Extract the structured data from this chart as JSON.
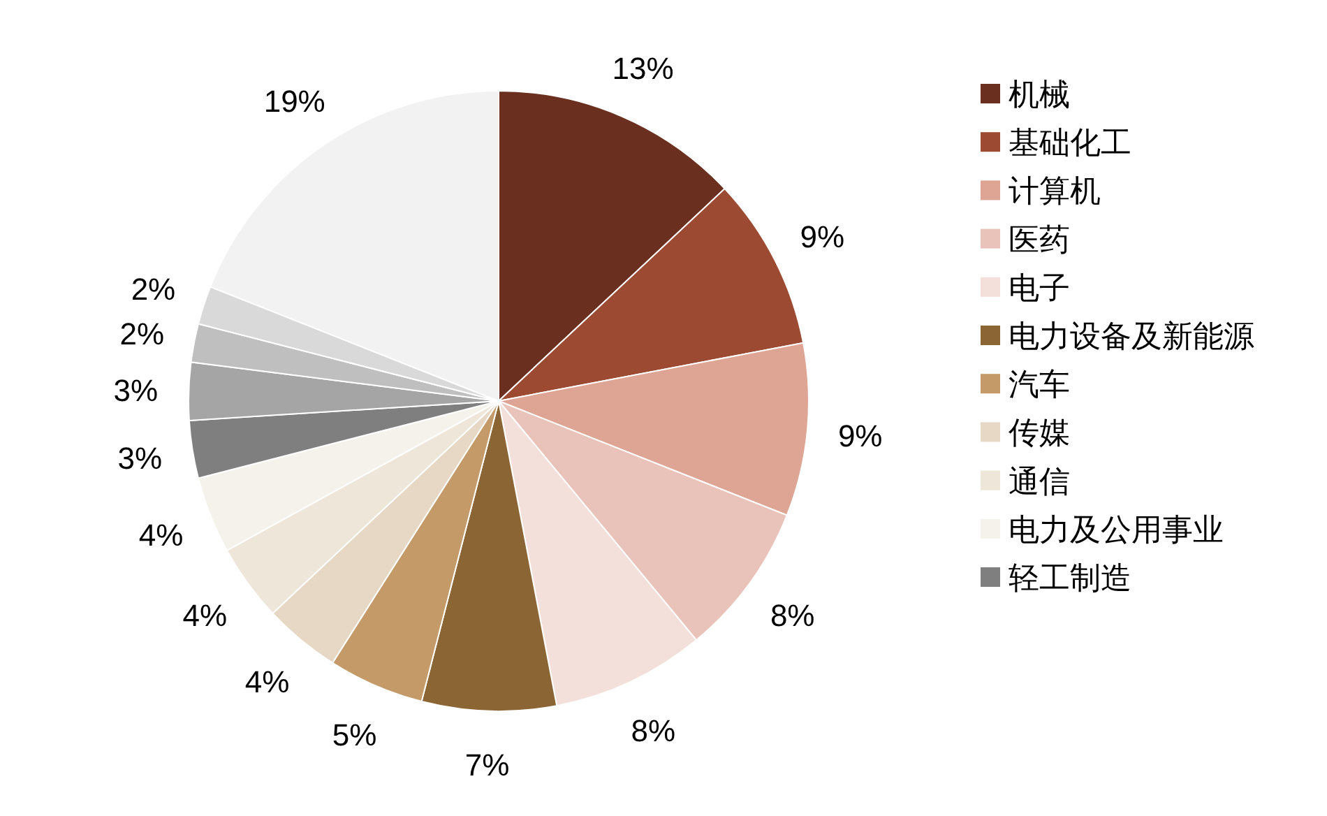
{
  "chart_data": {
    "type": "pie",
    "categories": [
      "机械",
      "基础化工",
      "计算机",
      "医药",
      "电子",
      "电力设备及新能源",
      "汽车",
      "传媒",
      "通信",
      "电力及公用事业",
      "轻工制造",
      null,
      null,
      null,
      null
    ],
    "values": [
      13,
      9,
      9,
      8,
      8,
      7,
      5,
      4,
      4,
      4,
      3,
      3,
      2,
      2,
      19
    ],
    "colors": [
      "#6b2f20",
      "#9c4a32",
      "#dea595",
      "#e9c3b9",
      "#f4e0db",
      "#8c6535",
      "#c49b68",
      "#e6d8c4",
      "#efe6da",
      "#f5f2ec",
      "#7f7f7f",
      "#a5a5a5",
      "#bfbfbf",
      "#d9d9d9",
      "#f2f2f2"
    ],
    "value_labels": [
      "13%",
      "9%",
      "9%",
      "8%",
      "8%",
      "7%",
      "5%",
      "4%",
      "4%",
      "4%",
      "3%",
      "3%",
      "2%",
      "2%",
      "19%"
    ],
    "legend": "right"
  }
}
